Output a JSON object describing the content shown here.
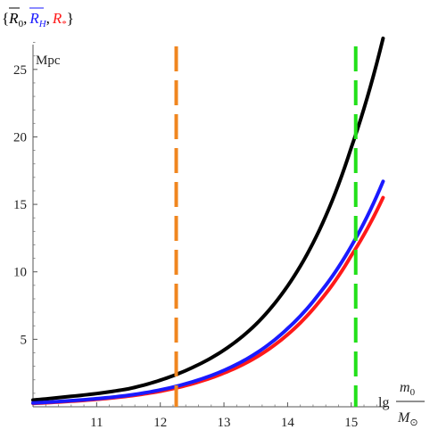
{
  "chart_data": {
    "type": "line",
    "title": {
      "open": "{",
      "r0": "R",
      "r0_sub": "0",
      "sep1": ",",
      "rh": "R",
      "rh_sub": "H",
      "sep2": ",",
      "rs": "R",
      "rs_sub": "*",
      "close": "}"
    },
    "ylabel": "Mpc",
    "xlabel": {
      "prefix": "lg",
      "numerator": "m",
      "numerator_sub": "0",
      "denominator": "M",
      "denominator_sub": "⊙"
    },
    "xlim": [
      10.0,
      15.55
    ],
    "ylim": [
      0,
      27.5
    ],
    "xticks": [
      11,
      12,
      13,
      14,
      15
    ],
    "yticks": [
      5,
      10,
      15,
      20,
      25
    ],
    "colors": {
      "r0": "#000000",
      "rh": "#1a1aff",
      "rs": "#ff1a1a",
      "vline_orange": "#f0861f",
      "vline_green": "#22e01a"
    },
    "series": [
      {
        "key": "r0",
        "x": [
          10.0,
          10.5,
          11.0,
          11.5,
          12.0,
          12.5,
          13.0,
          13.5,
          14.0,
          14.5,
          15.0,
          15.5
        ],
        "values": [
          0.5,
          0.73,
          0.98,
          1.33,
          1.97,
          2.9,
          4.2,
          6.1,
          8.95,
          13.1,
          19.2,
          27.3
        ]
      },
      {
        "key": "rh",
        "x": [
          10.0,
          10.5,
          11.0,
          11.5,
          12.0,
          12.5,
          13.0,
          13.5,
          14.0,
          14.5,
          15.0,
          15.5
        ],
        "values": [
          0.28,
          0.42,
          0.6,
          0.85,
          1.25,
          1.84,
          2.7,
          3.95,
          5.8,
          8.4,
          11.9,
          16.7
        ]
      },
      {
        "key": "rs",
        "x": [
          10.0,
          10.5,
          11.0,
          11.5,
          12.0,
          12.5,
          13.0,
          13.5,
          14.0,
          14.5,
          15.0,
          15.5
        ],
        "values": [
          0.25,
          0.38,
          0.55,
          0.79,
          1.15,
          1.7,
          2.5,
          3.65,
          5.35,
          7.8,
          11.2,
          15.5
        ]
      }
    ],
    "vlines": [
      {
        "x": 12.25,
        "color_key": "vline_orange"
      },
      {
        "x": 15.07,
        "color_key": "vline_green"
      }
    ]
  }
}
